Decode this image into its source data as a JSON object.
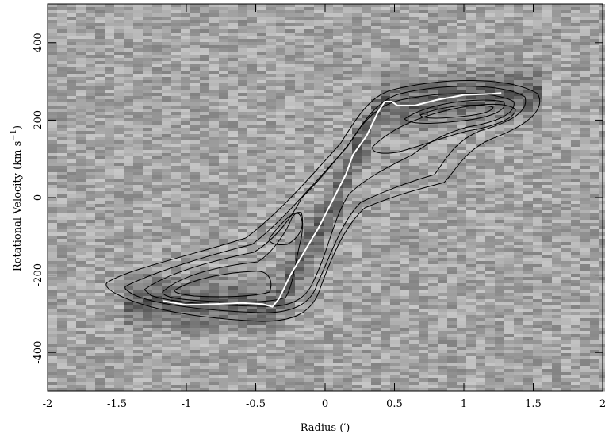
{
  "chart_data": {
    "type": "line",
    "xlabel": "Radius (′)",
    "ylabel": "Rotational Velocity (km s",
    "ylabel_sup": "−1",
    "ylabel_end": ")",
    "xlim": [
      -2,
      2
    ],
    "ylim": [
      -500,
      500
    ],
    "xticks": [
      -2,
      -1.5,
      -1,
      -0.5,
      0,
      0.5,
      1,
      1.5,
      2
    ],
    "yticks": [
      -400,
      -200,
      0,
      200,
      400
    ],
    "series": [
      {
        "color": "#ffffff",
        "x": [
          -1.17,
          -1.0,
          -0.8,
          -0.6,
          -0.45,
          -0.38,
          -0.33,
          -0.25,
          -0.15,
          -0.05,
          0.05,
          0.15,
          0.2,
          0.3,
          0.38,
          0.43,
          0.48,
          0.52,
          0.65,
          0.8,
          1.0,
          1.2,
          1.27
        ],
        "values": [
          -267,
          -277,
          -275,
          -272,
          -275,
          -282,
          -260,
          -200,
          -140,
          -80,
          -10,
          60,
          110,
          160,
          220,
          248,
          248,
          238,
          238,
          252,
          265,
          268,
          270
        ]
      }
    ]
  }
}
